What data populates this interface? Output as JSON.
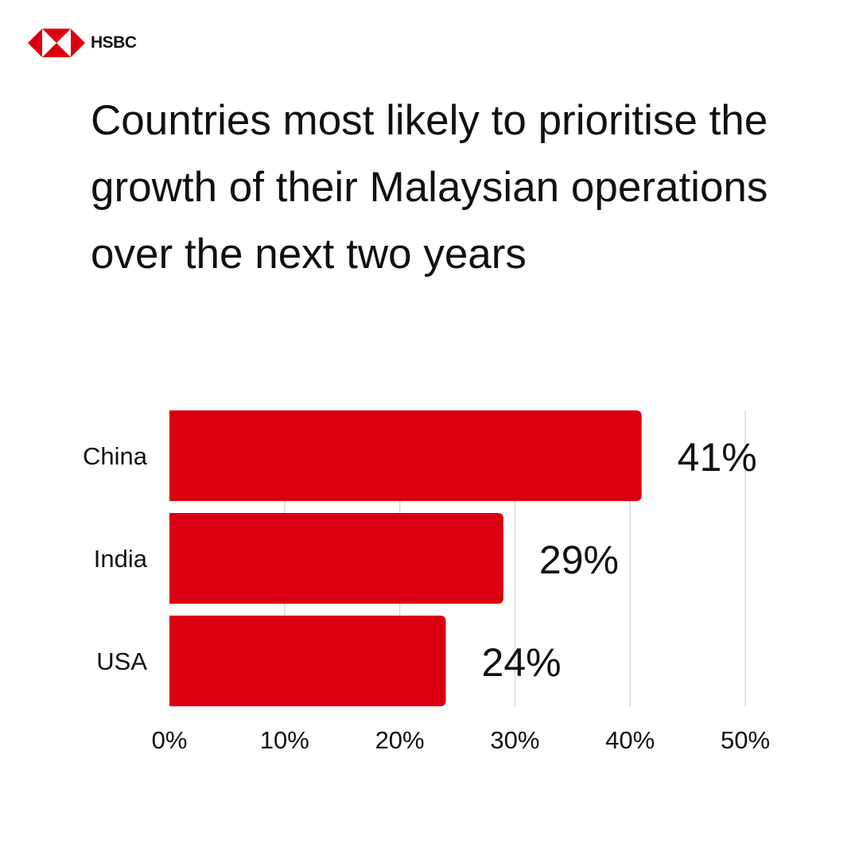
{
  "brand": {
    "name": "HSBC",
    "logo_color": "#db0011"
  },
  "chart_data": {
    "type": "bar",
    "orientation": "horizontal",
    "title": "Countries most likely to prioritise the growth of their Malaysian operations over the next two years",
    "categories": [
      "China",
      "India",
      "USA"
    ],
    "values": [
      41,
      29,
      24
    ],
    "data_labels": [
      "41%",
      "29%",
      "24%"
    ],
    "xlim": [
      0,
      50
    ],
    "x_ticks": [
      0,
      10,
      20,
      30,
      40,
      50
    ],
    "x_tick_labels": [
      "0%",
      "10%",
      "20%",
      "30%",
      "40%",
      "50%"
    ],
    "xlabel": "",
    "ylabel": "",
    "grid": "vertical",
    "legend": "none",
    "bar_color": "#db0011",
    "grid_color": "#d9d9d9"
  }
}
